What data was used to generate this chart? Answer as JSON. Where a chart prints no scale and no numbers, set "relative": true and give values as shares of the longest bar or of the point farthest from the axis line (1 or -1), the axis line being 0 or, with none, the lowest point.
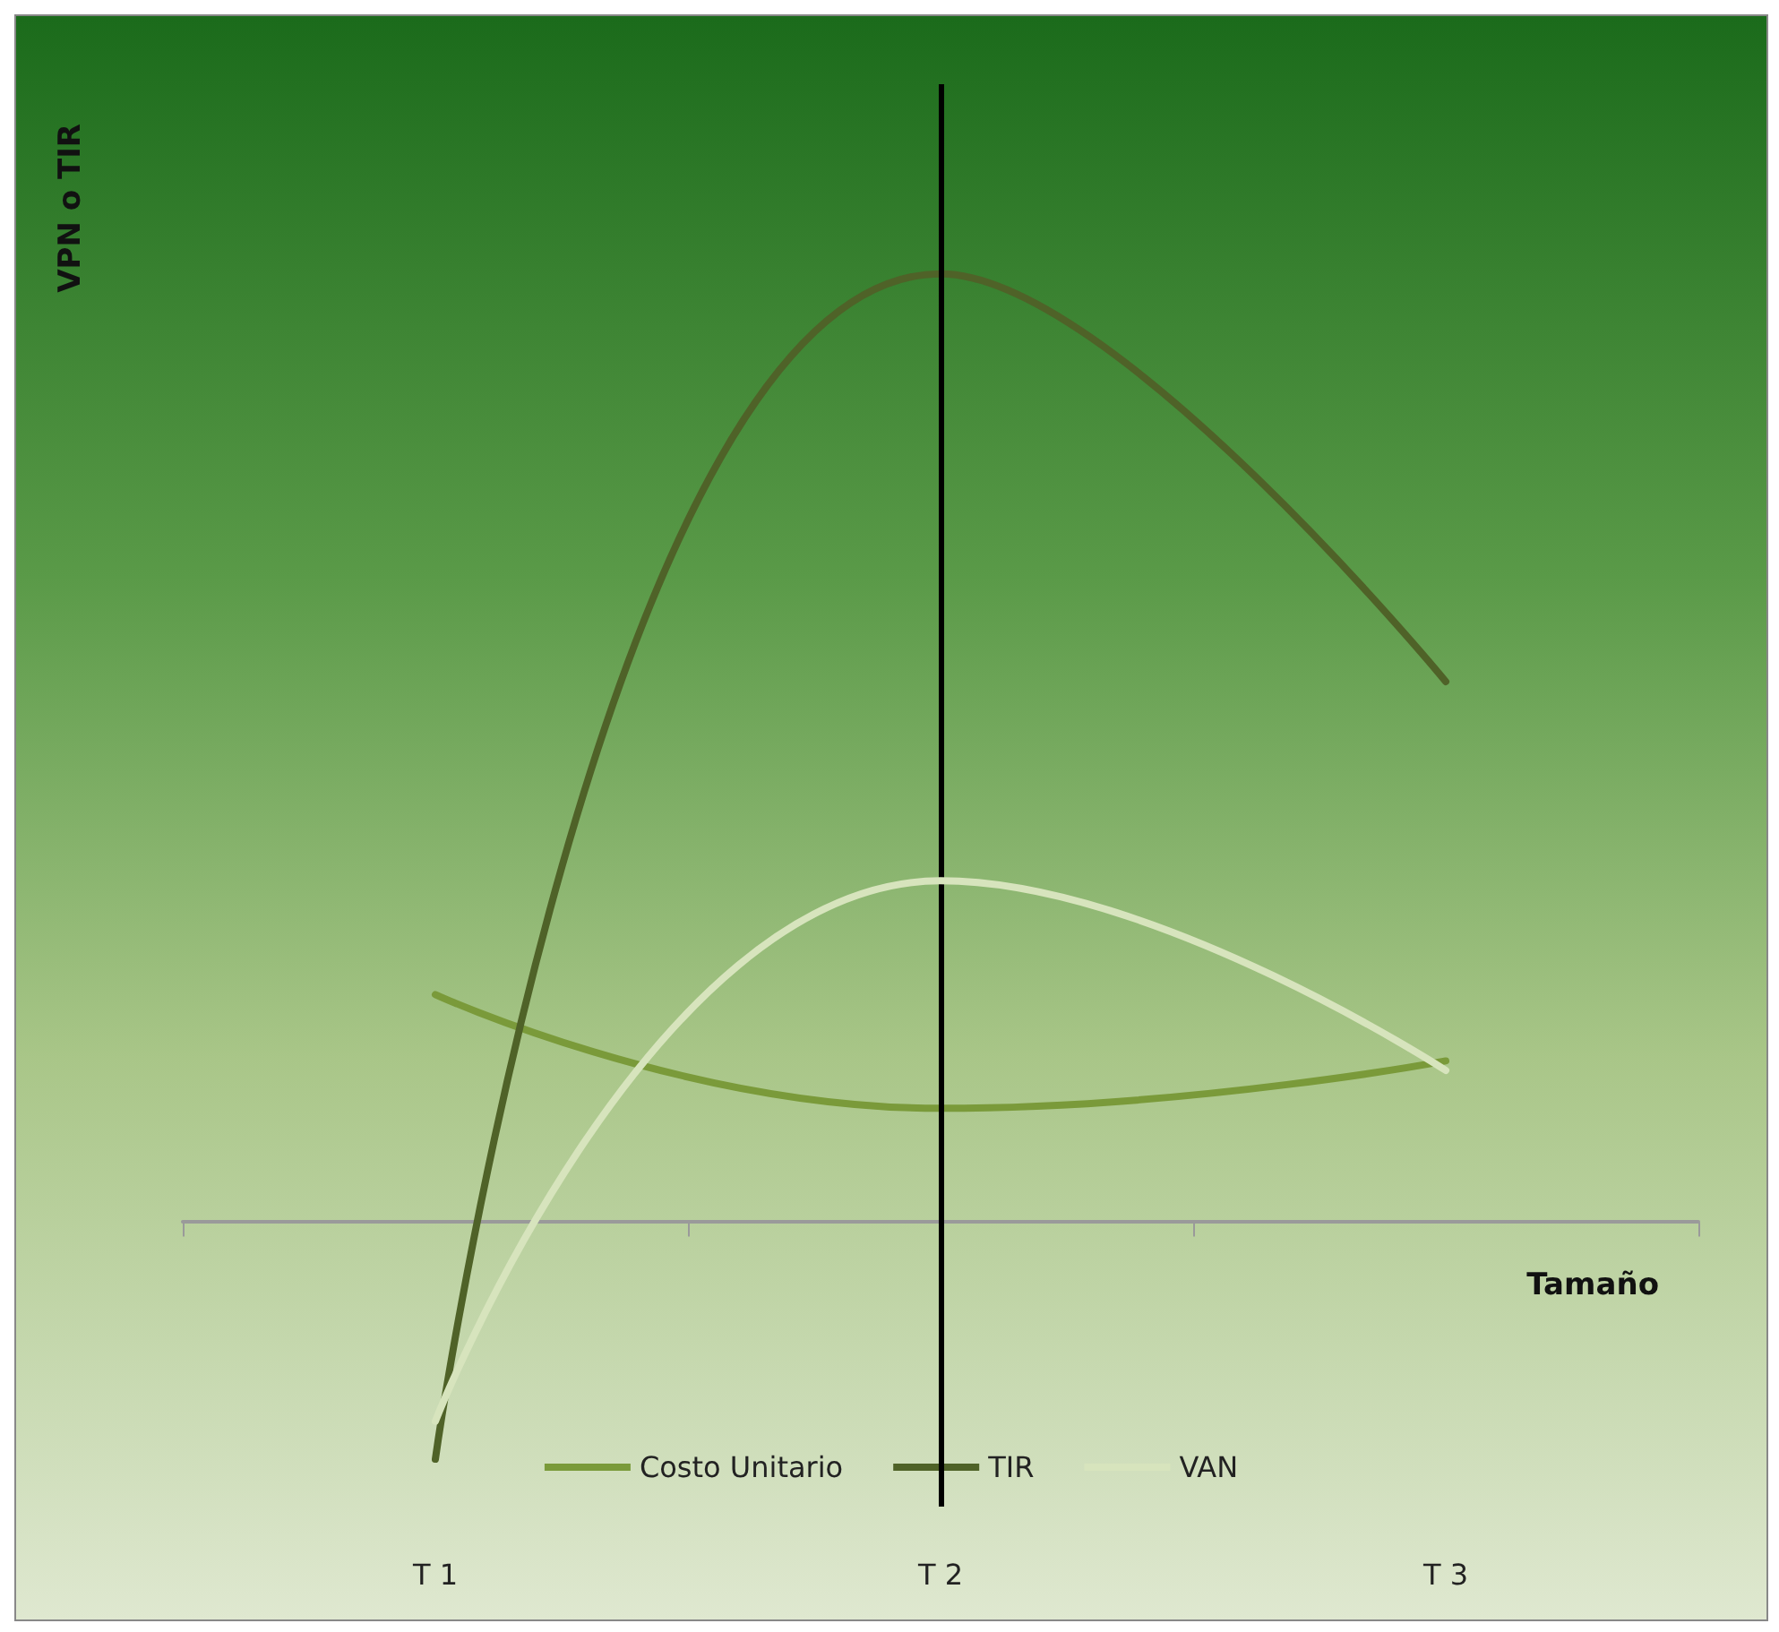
{
  "chart_data": {
    "type": "line",
    "relative": true,
    "ylabel": "VPN o TIR",
    "xlabel": "Tamaño",
    "categories": [
      "T 1",
      "T 2",
      "T 3"
    ],
    "series": [
      {
        "name": "Costo Unitario",
        "color": "#7a9a3a",
        "values": [
          0.24,
          0.12,
          0.17
        ]
      },
      {
        "name": "TIR",
        "color": "#4f6228",
        "values": [
          -0.25,
          1,
          0.57
        ]
      },
      {
        "name": "VAN",
        "color": "#d7e4bd",
        "values": [
          -0.21,
          0.36,
          0.16
        ]
      }
    ],
    "ref_lines": [
      {
        "axis": "x",
        "value": "T 2",
        "color": "#000000"
      }
    ],
    "legend": "bottom",
    "grid": false,
    "marker": "none",
    "line_style": "solid"
  }
}
